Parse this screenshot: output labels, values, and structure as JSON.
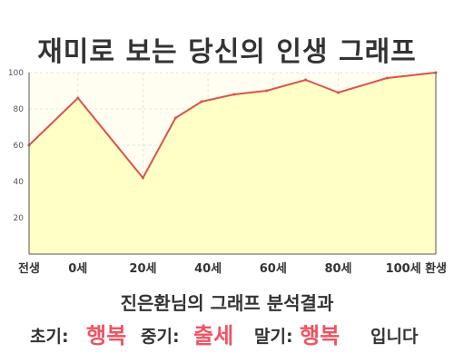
{
  "title": "재미로 보는 당신의 인생 그래프",
  "chart_data": {
    "type": "area",
    "title": "재미로 보는 당신의 인생 그래프",
    "x": [
      -15,
      0,
      20,
      30,
      38,
      48,
      58,
      70,
      80,
      95,
      110
    ],
    "y": [
      60,
      86,
      42,
      75,
      84,
      88,
      90,
      96,
      89,
      97,
      100
    ],
    "xlim": [
      -15,
      110
    ],
    "ylim": [
      0,
      100
    ],
    "y_ticks": [
      20,
      40,
      60,
      80,
      100
    ],
    "x_tick_labels": [
      {
        "x": -15,
        "label": "전생"
      },
      {
        "x": 0,
        "label": "0세"
      },
      {
        "x": 20,
        "label": "20세"
      },
      {
        "x": 40,
        "label": "40세"
      },
      {
        "x": 60,
        "label": "60세"
      },
      {
        "x": 80,
        "label": "80세"
      },
      {
        "x": 100,
        "label": "100세"
      },
      {
        "x": 110,
        "label": "환생"
      }
    ],
    "grid": true,
    "colors": {
      "fill": "#ffffc6",
      "line": "#d9534f",
      "grid": "#e4e4e4",
      "axis": "#555555"
    }
  },
  "analysis": {
    "title": "진은환님의 그래프 분석결과",
    "early_label": "초기:",
    "early_value": "행복",
    "mid_label": "중기:",
    "mid_value": "출세",
    "late_label": "말기:",
    "late_value": "행복",
    "ending": "입니다"
  },
  "colors": {
    "highlight": "#ef5360",
    "text": "#333333"
  }
}
